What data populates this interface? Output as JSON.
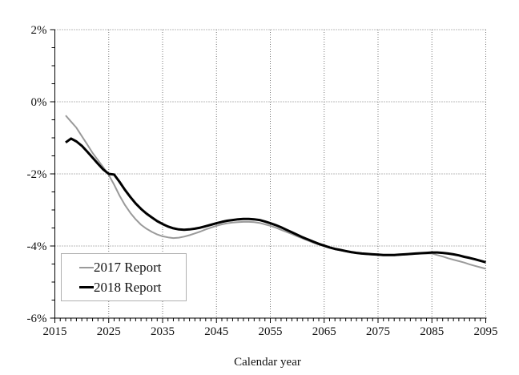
{
  "chart_data": {
    "type": "line",
    "title": "",
    "xlabel": "Calendar year",
    "ylabel": "",
    "xlim": [
      2015,
      2095
    ],
    "ylim": [
      -6,
      2
    ],
    "grid": "major-only, dotted",
    "legend_position": "inside lower-left",
    "x_ticks": [
      {
        "v": 2015,
        "label": "2015"
      },
      {
        "v": 2025,
        "label": "2025"
      },
      {
        "v": 2035,
        "label": "2035"
      },
      {
        "v": 2045,
        "label": "2045"
      },
      {
        "v": 2055,
        "label": "2055"
      },
      {
        "v": 2065,
        "label": "2065"
      },
      {
        "v": 2075,
        "label": "2075"
      },
      {
        "v": 2085,
        "label": "2085"
      },
      {
        "v": 2095,
        "label": "2095"
      }
    ],
    "x_minor_tick_step": 1,
    "y_ticks": [
      {
        "v": 2,
        "label": "2%"
      },
      {
        "v": 0,
        "label": "0%"
      },
      {
        "v": -2,
        "label": "-2%"
      },
      {
        "v": -4,
        "label": "-4%"
      },
      {
        "v": -6,
        "label": "-6%"
      }
    ],
    "y_minor_tick_step": 0.5,
    "colors": {
      "axis": "#000000",
      "gridline": "#777777",
      "series_2017": "#9a9a9a",
      "series_2018": "#000000"
    },
    "series": [
      {
        "name": "2017 Report",
        "color": "#9a9a9a",
        "width": 2,
        "points": [
          [
            2017,
            -0.38
          ],
          [
            2018,
            -0.55
          ],
          [
            2019,
            -0.72
          ],
          [
            2020,
            -0.95
          ],
          [
            2021,
            -1.18
          ],
          [
            2022,
            -1.42
          ],
          [
            2023,
            -1.62
          ],
          [
            2024,
            -1.82
          ],
          [
            2025,
            -2.03
          ],
          [
            2026,
            -2.3
          ],
          [
            2027,
            -2.6
          ],
          [
            2028,
            -2.86
          ],
          [
            2029,
            -3.08
          ],
          [
            2030,
            -3.26
          ],
          [
            2031,
            -3.41
          ],
          [
            2032,
            -3.52
          ],
          [
            2033,
            -3.61
          ],
          [
            2034,
            -3.68
          ],
          [
            2035,
            -3.73
          ],
          [
            2036,
            -3.76
          ],
          [
            2037,
            -3.78
          ],
          [
            2038,
            -3.77
          ],
          [
            2039,
            -3.74
          ],
          [
            2040,
            -3.7
          ],
          [
            2041,
            -3.65
          ],
          [
            2042,
            -3.6
          ],
          [
            2043,
            -3.54
          ],
          [
            2044,
            -3.49
          ],
          [
            2045,
            -3.44
          ],
          [
            2046,
            -3.4
          ],
          [
            2047,
            -3.37
          ],
          [
            2048,
            -3.35
          ],
          [
            2049,
            -3.34
          ],
          [
            2050,
            -3.33
          ],
          [
            2051,
            -3.33
          ],
          [
            2052,
            -3.34
          ],
          [
            2053,
            -3.36
          ],
          [
            2054,
            -3.4
          ],
          [
            2055,
            -3.44
          ],
          [
            2056,
            -3.49
          ],
          [
            2057,
            -3.55
          ],
          [
            2058,
            -3.61
          ],
          [
            2059,
            -3.67
          ],
          [
            2060,
            -3.73
          ],
          [
            2061,
            -3.79
          ],
          [
            2062,
            -3.85
          ],
          [
            2063,
            -3.91
          ],
          [
            2064,
            -3.96
          ],
          [
            2065,
            -4.01
          ],
          [
            2066,
            -4.05
          ],
          [
            2067,
            -4.09
          ],
          [
            2068,
            -4.12
          ],
          [
            2069,
            -4.15
          ],
          [
            2070,
            -4.18
          ],
          [
            2071,
            -4.2
          ],
          [
            2072,
            -4.22
          ],
          [
            2073,
            -4.23
          ],
          [
            2074,
            -4.24
          ],
          [
            2075,
            -4.25
          ],
          [
            2076,
            -4.26
          ],
          [
            2077,
            -4.26
          ],
          [
            2078,
            -4.26
          ],
          [
            2079,
            -4.25
          ],
          [
            2080,
            -4.24
          ],
          [
            2081,
            -4.23
          ],
          [
            2082,
            -4.22
          ],
          [
            2083,
            -4.21
          ],
          [
            2084,
            -4.21
          ],
          [
            2085,
            -4.21
          ],
          [
            2086,
            -4.25
          ],
          [
            2087,
            -4.29
          ],
          [
            2088,
            -4.34
          ],
          [
            2089,
            -4.38
          ],
          [
            2090,
            -4.42
          ],
          [
            2091,
            -4.46
          ],
          [
            2092,
            -4.51
          ],
          [
            2093,
            -4.55
          ],
          [
            2094,
            -4.59
          ],
          [
            2095,
            -4.63
          ]
        ]
      },
      {
        "name": "2018 Report",
        "color": "#000000",
        "width": 3,
        "points": [
          [
            2017,
            -1.13
          ],
          [
            2018,
            -1.02
          ],
          [
            2019,
            -1.1
          ],
          [
            2020,
            -1.22
          ],
          [
            2021,
            -1.38
          ],
          [
            2022,
            -1.55
          ],
          [
            2023,
            -1.72
          ],
          [
            2024,
            -1.88
          ],
          [
            2025,
            -2.0
          ],
          [
            2026,
            -2.02
          ],
          [
            2027,
            -2.22
          ],
          [
            2028,
            -2.44
          ],
          [
            2029,
            -2.64
          ],
          [
            2030,
            -2.82
          ],
          [
            2031,
            -2.97
          ],
          [
            2032,
            -3.1
          ],
          [
            2033,
            -3.21
          ],
          [
            2034,
            -3.31
          ],
          [
            2035,
            -3.39
          ],
          [
            2036,
            -3.46
          ],
          [
            2037,
            -3.51
          ],
          [
            2038,
            -3.54
          ],
          [
            2039,
            -3.55
          ],
          [
            2040,
            -3.54
          ],
          [
            2041,
            -3.52
          ],
          [
            2042,
            -3.49
          ],
          [
            2043,
            -3.45
          ],
          [
            2044,
            -3.41
          ],
          [
            2045,
            -3.37
          ],
          [
            2046,
            -3.33
          ],
          [
            2047,
            -3.3
          ],
          [
            2048,
            -3.28
          ],
          [
            2049,
            -3.26
          ],
          [
            2050,
            -3.25
          ],
          [
            2051,
            -3.25
          ],
          [
            2052,
            -3.26
          ],
          [
            2053,
            -3.28
          ],
          [
            2054,
            -3.32
          ],
          [
            2055,
            -3.37
          ],
          [
            2056,
            -3.42
          ],
          [
            2057,
            -3.48
          ],
          [
            2058,
            -3.55
          ],
          [
            2059,
            -3.62
          ],
          [
            2060,
            -3.69
          ],
          [
            2061,
            -3.76
          ],
          [
            2062,
            -3.82
          ],
          [
            2063,
            -3.88
          ],
          [
            2064,
            -3.94
          ],
          [
            2065,
            -3.99
          ],
          [
            2066,
            -4.04
          ],
          [
            2067,
            -4.08
          ],
          [
            2068,
            -4.11
          ],
          [
            2069,
            -4.14
          ],
          [
            2070,
            -4.17
          ],
          [
            2071,
            -4.19
          ],
          [
            2072,
            -4.21
          ],
          [
            2073,
            -4.22
          ],
          [
            2074,
            -4.23
          ],
          [
            2075,
            -4.24
          ],
          [
            2076,
            -4.25
          ],
          [
            2077,
            -4.25
          ],
          [
            2078,
            -4.25
          ],
          [
            2079,
            -4.24
          ],
          [
            2080,
            -4.23
          ],
          [
            2081,
            -4.22
          ],
          [
            2082,
            -4.21
          ],
          [
            2083,
            -4.2
          ],
          [
            2084,
            -4.19
          ],
          [
            2085,
            -4.18
          ],
          [
            2086,
            -4.18
          ],
          [
            2087,
            -4.19
          ],
          [
            2088,
            -4.21
          ],
          [
            2089,
            -4.23
          ],
          [
            2090,
            -4.26
          ],
          [
            2091,
            -4.3
          ],
          [
            2092,
            -4.33
          ],
          [
            2093,
            -4.37
          ],
          [
            2094,
            -4.41
          ],
          [
            2095,
            -4.45
          ]
        ]
      }
    ]
  },
  "legend": {
    "items": [
      {
        "label": "2017 Report"
      },
      {
        "label": "2018 Report"
      }
    ]
  }
}
